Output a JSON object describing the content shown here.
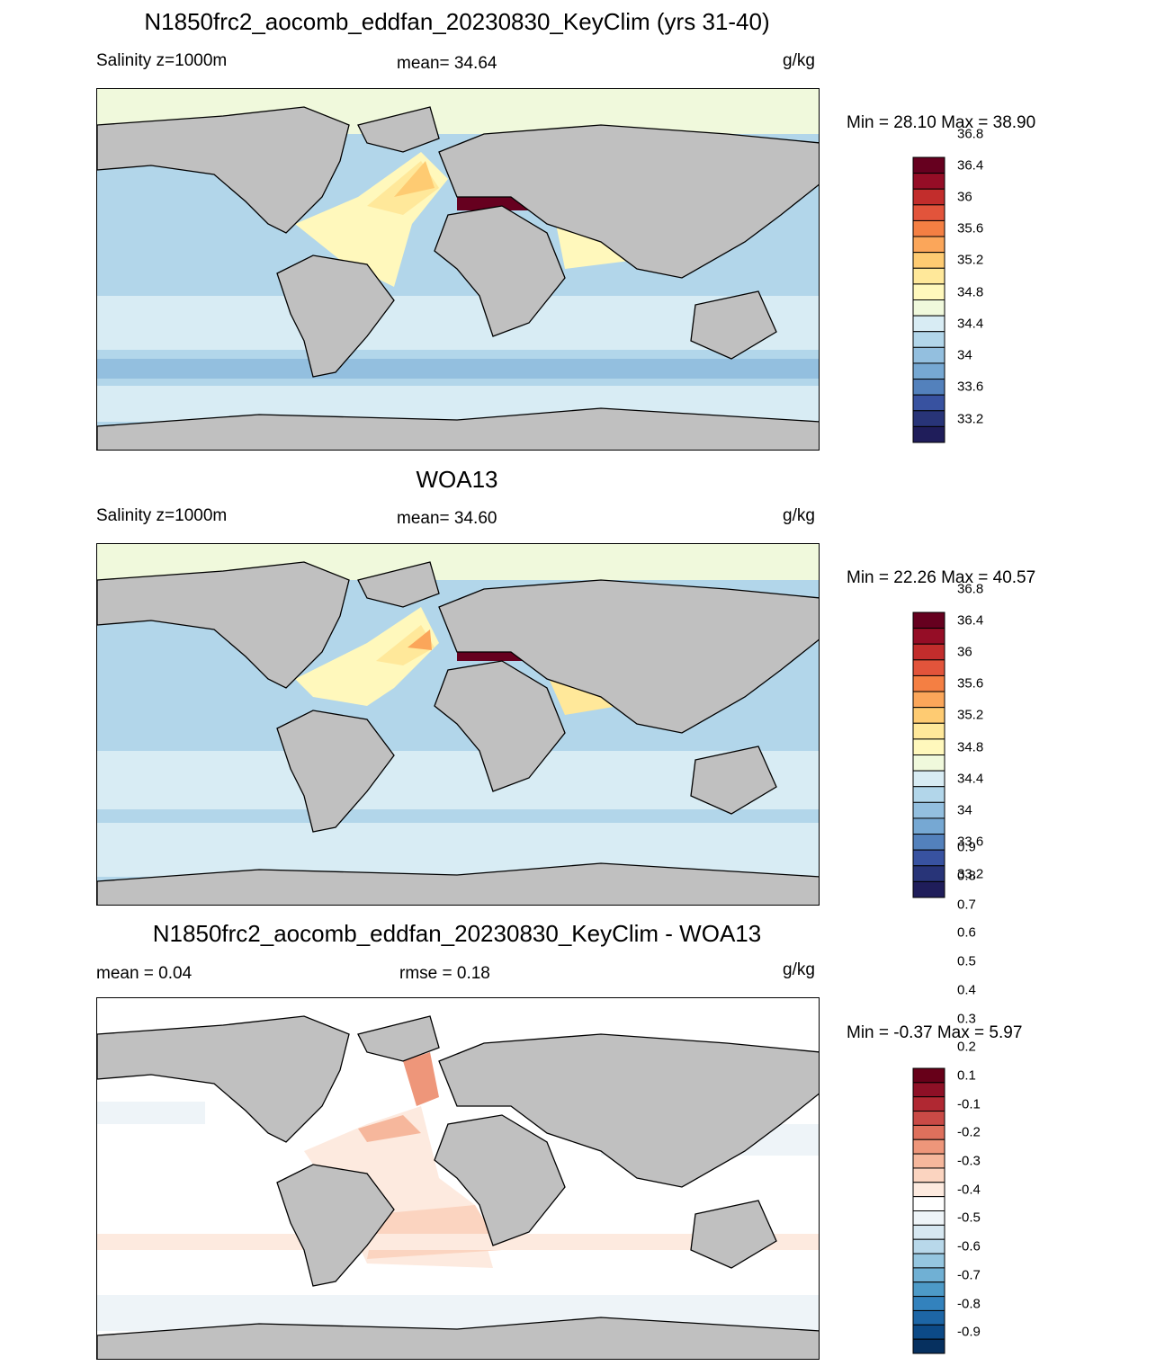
{
  "panels": [
    {
      "id": "model",
      "title": "N1850frc2_aocomb_eddfan_20230830_KeyClim (yrs 31-40)",
      "left_label": "Salinity z=1000m",
      "center_label": "mean=  34.64",
      "right_label": "g/kg",
      "minmax": "Min =  28.10 Max =  38.90",
      "colorbar": {
        "colors": [
          "#1f1d5a",
          "#283478",
          "#3852a0",
          "#5381bc",
          "#76a8d3",
          "#93bfdf",
          "#b2d6ea",
          "#d8ecf4",
          "#f0f9dc",
          "#fff8bc",
          "#ffe89a",
          "#fecb72",
          "#fba65a",
          "#f47f43",
          "#e2543b",
          "#c22d2c",
          "#950d26",
          "#66001f"
        ],
        "tick_labels": [
          "33.2",
          "33.6",
          "34",
          "34.4",
          "34.8",
          "35.2",
          "35.6",
          "36",
          "36.4",
          "36.8"
        ]
      }
    },
    {
      "id": "obs",
      "title": "WOA13",
      "left_label": "Salinity z=1000m",
      "center_label": "mean=  34.60",
      "right_label": "g/kg",
      "minmax": "Min =  22.26 Max =  40.57",
      "colorbar": {
        "colors": [
          "#1f1d5a",
          "#283478",
          "#3852a0",
          "#5381bc",
          "#76a8d3",
          "#93bfdf",
          "#b2d6ea",
          "#d8ecf4",
          "#f0f9dc",
          "#fff8bc",
          "#ffe89a",
          "#fecb72",
          "#fba65a",
          "#f47f43",
          "#e2543b",
          "#c22d2c",
          "#950d26",
          "#66001f"
        ],
        "tick_labels": [
          "33.2",
          "33.6",
          "34",
          "34.4",
          "34.8",
          "35.2",
          "35.6",
          "36",
          "36.4",
          "36.8"
        ]
      }
    },
    {
      "id": "diff",
      "title": "N1850frc2_aocomb_eddfan_20230830_KeyClim - WOA13",
      "left_label": "mean =   0.04",
      "center_label": "rmse =   0.18",
      "right_label": "g/kg",
      "minmax": "Min =  -0.37 Max =   5.97",
      "colorbar": {
        "colors": [
          "#06305f",
          "#0c4a87",
          "#1d66a6",
          "#3382bd",
          "#4d9ac7",
          "#70b0d4",
          "#95c6e0",
          "#b8d8ea",
          "#d6e7f1",
          "#eef4f8",
          "#ffffff",
          "#fdeadf",
          "#fbd4c0",
          "#f6b79c",
          "#ee967a",
          "#de705c",
          "#c94a46",
          "#b02832",
          "#8e1026",
          "#670019"
        ],
        "tick_labels": [
          "-0.9",
          "-0.8",
          "-0.7",
          "-0.6",
          "-0.5",
          "-0.4",
          "-0.3",
          "-0.2",
          "-0.1",
          "0.1",
          "0.2",
          "0.3",
          "0.4",
          "0.5",
          "0.6",
          "0.7",
          "0.8",
          "0.9"
        ]
      }
    }
  ],
  "land_color": "#c0c0c0",
  "legend_colors": {
    "arctic": "#f0f9dc",
    "north_atlantic": "#fecb72",
    "mediterranean": "#66001f",
    "ocean_background": "#b2d6ea",
    "diff_zero": "#ffffff",
    "diff_positive": "#f6b79c"
  }
}
